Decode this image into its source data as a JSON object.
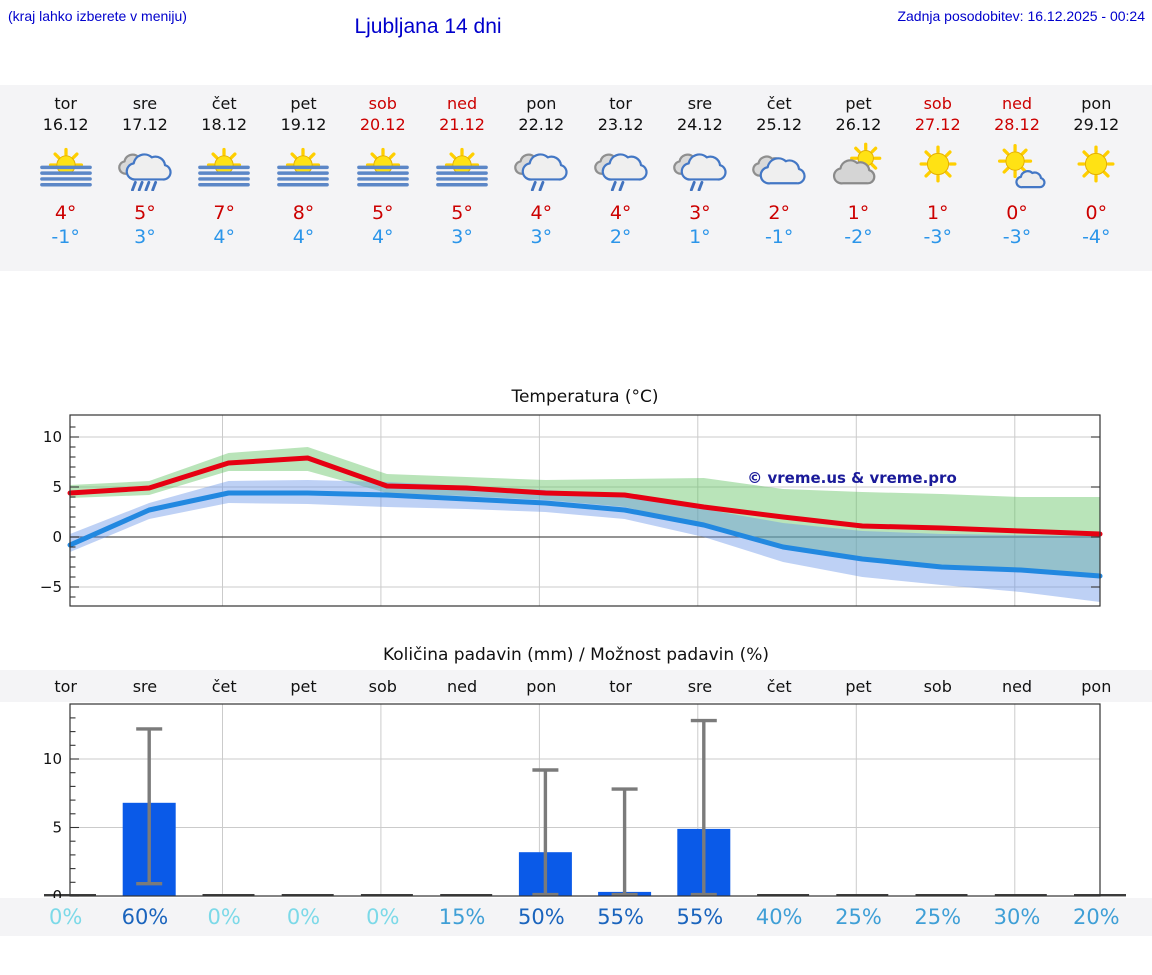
{
  "header": {
    "hint": "(kraj lahko izberete v meniju)",
    "title": "Ljubljana 14 dni",
    "updated": "Zadnja posodobitev: 16.12.2025 - 00:24"
  },
  "colors": {
    "header_blue": "#0000cc",
    "weekend_red": "#cc0000",
    "high_temp_red": "#cc0000",
    "low_temp_blue": "#2b95e9",
    "strip_bg": "#f4f4f6",
    "line_red": "#e60012",
    "line_blue": "#2288e0",
    "band_green": "rgba(100,195,100,0.45)",
    "band_blue": "rgba(100,145,230,0.42)",
    "bar_blue": "#0a5ae8",
    "error_gray": "#7b7b7b",
    "grid_gray": "#cbcbcb",
    "spine_dark": "#333333",
    "watermark_navy": "#1a1a99",
    "percent_zero": "#7cd9e8",
    "percent_low": "#3f9fd6",
    "percent_high": "#1a64bd"
  },
  "forecast_days": [
    {
      "day": "tor",
      "date": "16.12",
      "weekend": false,
      "icon": "sun-fog",
      "tmax": "4°",
      "tmin": "-1°"
    },
    {
      "day": "sre",
      "date": "17.12",
      "weekend": false,
      "icon": "rain",
      "tmax": "5°",
      "tmin": "3°"
    },
    {
      "day": "čet",
      "date": "18.12",
      "weekend": false,
      "icon": "sun-fog",
      "tmax": "7°",
      "tmin": "4°"
    },
    {
      "day": "pet",
      "date": "19.12",
      "weekend": false,
      "icon": "sun-fog",
      "tmax": "8°",
      "tmin": "4°"
    },
    {
      "day": "sob",
      "date": "20.12",
      "weekend": true,
      "icon": "sun-fog",
      "tmax": "5°",
      "tmin": "4°"
    },
    {
      "day": "ned",
      "date": "21.12",
      "weekend": true,
      "icon": "sun-fog",
      "tmax": "5°",
      "tmin": "3°"
    },
    {
      "day": "pon",
      "date": "22.12",
      "weekend": false,
      "icon": "light-rain",
      "tmax": "4°",
      "tmin": "3°"
    },
    {
      "day": "tor",
      "date": "23.12",
      "weekend": false,
      "icon": "light-rain",
      "tmax": "4°",
      "tmin": "2°"
    },
    {
      "day": "sre",
      "date": "24.12",
      "weekend": false,
      "icon": "light-rain",
      "tmax": "3°",
      "tmin": "1°"
    },
    {
      "day": "čet",
      "date": "25.12",
      "weekend": false,
      "icon": "cloudy",
      "tmax": "2°",
      "tmin": "-1°"
    },
    {
      "day": "pet",
      "date": "26.12",
      "weekend": false,
      "icon": "partly-cloudy",
      "tmax": "1°",
      "tmin": "-2°"
    },
    {
      "day": "sob",
      "date": "27.12",
      "weekend": true,
      "icon": "sunny",
      "tmax": "1°",
      "tmin": "-3°"
    },
    {
      "day": "ned",
      "date": "28.12",
      "weekend": true,
      "icon": "mostly-sunny",
      "tmax": "0°",
      "tmin": "-3°"
    },
    {
      "day": "pon",
      "date": "29.12",
      "weekend": false,
      "icon": "sunny",
      "tmax": "0°",
      "tmin": "-4°"
    }
  ],
  "chart_data": [
    {
      "type": "line",
      "title": "Temperatura (°C)",
      "watermark": "© vreme.us & vreme.pro",
      "x": [
        0,
        1,
        2,
        3,
        4,
        5,
        6,
        7,
        8,
        9,
        10,
        11,
        12,
        13
      ],
      "yticks": [
        10,
        5,
        0,
        -5
      ],
      "ylim": [
        -6.9,
        11.9
      ],
      "x_gridline_days": [
        2,
        4,
        6,
        8,
        10,
        12
      ],
      "series": [
        {
          "name": "max-temp",
          "values": [
            4.4,
            4.9,
            7.4,
            7.9,
            5.1,
            4.9,
            4.4,
            4.2,
            3.0,
            2.0,
            1.1,
            0.9,
            0.6,
            0.3
          ]
        },
        {
          "name": "min-temp",
          "values": [
            -0.8,
            2.7,
            4.4,
            4.4,
            4.2,
            3.8,
            3.4,
            2.7,
            1.2,
            -1.0,
            -2.2,
            -3.0,
            -3.3,
            -3.9
          ]
        }
      ],
      "bands": [
        {
          "name": "max-temp-range",
          "hi": [
            5.2,
            5.6,
            8.4,
            9.0,
            6.3,
            6.0,
            5.7,
            5.8,
            5.9,
            4.8,
            4.5,
            4.3,
            4.0,
            4.0
          ],
          "lo": [
            3.9,
            4.2,
            6.6,
            6.6,
            4.4,
            4.1,
            3.7,
            3.0,
            1.2,
            -1.0,
            -2.0,
            -2.8,
            -3.2,
            -3.7
          ]
        },
        {
          "name": "min-temp-range",
          "hi": [
            0.3,
            3.4,
            5.6,
            5.7,
            5.5,
            5.1,
            4.7,
            4.2,
            2.8,
            1.4,
            0.6,
            0.3,
            0.2,
            0.1
          ],
          "lo": [
            -1.5,
            1.8,
            3.4,
            3.3,
            3.0,
            2.8,
            2.5,
            1.8,
            0.0,
            -2.5,
            -4.0,
            -4.8,
            -5.5,
            -6.5
          ]
        }
      ]
    },
    {
      "type": "bar",
      "title": "Količina padavin (mm) / Možnost padavin (%)",
      "categories": [
        "tor",
        "sre",
        "čet",
        "pet",
        "sob",
        "ned",
        "pon",
        "tor",
        "sre",
        "čet",
        "pet",
        "sob",
        "ned",
        "pon"
      ],
      "values": [
        0,
        6.8,
        0,
        0,
        0,
        0,
        3.2,
        0.3,
        4.9,
        0,
        0,
        0,
        0,
        0
      ],
      "error_low": [
        null,
        0.9,
        null,
        null,
        null,
        null,
        0.1,
        0.1,
        0.1,
        null,
        null,
        null,
        null,
        null
      ],
      "error_high": [
        null,
        12.2,
        null,
        null,
        null,
        null,
        9.2,
        7.8,
        12.8,
        null,
        null,
        null,
        null,
        null
      ],
      "percents": [
        0,
        60,
        0,
        0,
        0,
        15,
        50,
        55,
        55,
        40,
        25,
        25,
        30,
        20
      ],
      "yticks": [
        0,
        5,
        10
      ],
      "ylim": [
        0,
        14.0
      ]
    }
  ]
}
